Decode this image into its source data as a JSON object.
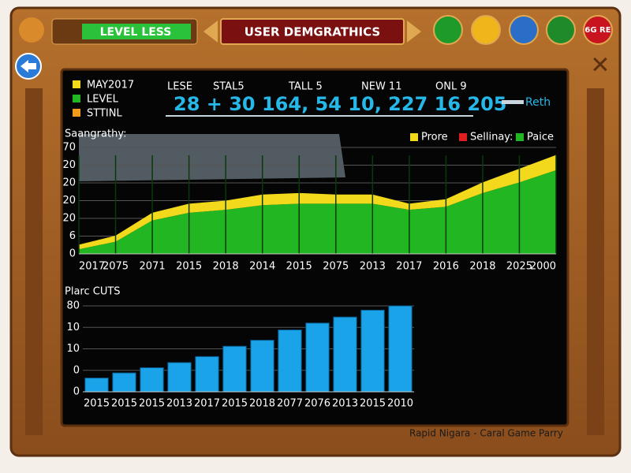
{
  "header": {
    "level_button": "LEVEL LESS",
    "title": "USER DEMGRATHICS",
    "badge": "6G RE"
  },
  "legend": [
    "MAY2017",
    "LEVEL",
    "STTINL"
  ],
  "stats": {
    "labels": [
      "LESE",
      "STAL5",
      "TALL 5",
      "NEW 11",
      "ONL 9"
    ],
    "numbers": "28 + 30 164, 54 10, 227 16 205",
    "link": "Reth"
  },
  "footer": "Rapid Nigara - Caral Game Parry",
  "chart_data": [
    {
      "type": "area",
      "title": "Saangrathy:",
      "categories": [
        "2017",
        "2075",
        "2071",
        "2015",
        "2018",
        "2014",
        "2015",
        "2075",
        "2013",
        "2017",
        "2016",
        "2018",
        "2025",
        "2000"
      ],
      "series": [
        {
          "name": "Paice",
          "color": "#22b722",
          "values": [
            3,
            8,
            22,
            27,
            29,
            32,
            33,
            33,
            33,
            29,
            31,
            40,
            47,
            55
          ]
        },
        {
          "name": "Prore",
          "color": "#f2d91c",
          "values": [
            3,
            4,
            5,
            6,
            6,
            7,
            7,
            6,
            6,
            4,
            5,
            7,
            9,
            10
          ]
        },
        {
          "name": "Sellinay:",
          "color": "#e02020",
          "values": [
            null,
            null,
            null,
            null,
            null,
            null,
            null,
            null,
            null,
            null,
            null,
            null,
            null,
            null
          ]
        }
      ],
      "stacked": true,
      "ylim": [
        0,
        70
      ],
      "ytick_labels": [
        "0",
        "6",
        "20",
        "20",
        "20",
        "20",
        "70"
      ],
      "grid": true
    },
    {
      "type": "bar",
      "title": "Plarc CUTS",
      "categories": [
        "2015",
        "2015",
        "2015",
        "2013",
        "2017",
        "2015",
        "2018",
        "2077",
        "2076",
        "2013",
        "2015",
        "2010"
      ],
      "values": [
        16,
        22,
        28,
        34,
        41,
        53,
        60,
        72,
        80,
        87,
        95,
        100
      ],
      "color": "#1aa3e8",
      "ylim": [
        0,
        100
      ],
      "ytick_labels": [
        "0",
        "0",
        "10",
        "10",
        "80"
      ],
      "grid": true
    }
  ]
}
